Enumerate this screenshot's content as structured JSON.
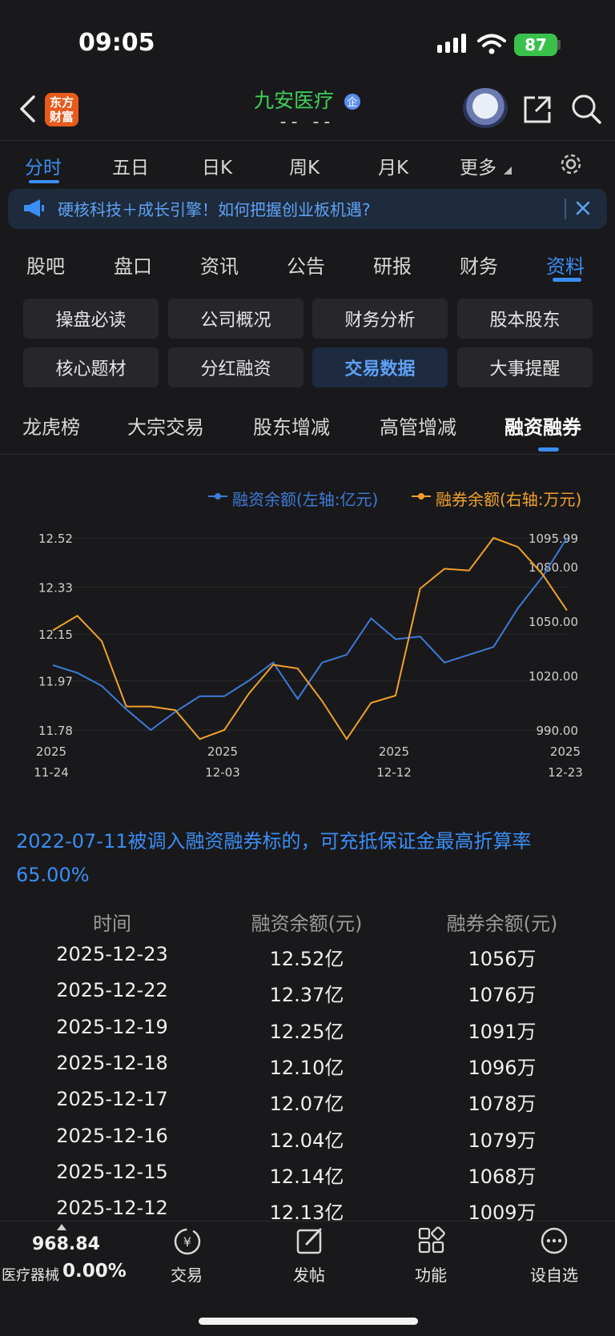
{
  "status_bar": {
    "time": "09:05",
    "battery": "87"
  },
  "header": {
    "logo_text": "东方财富",
    "stock_name": "九安医疗",
    "stock_sub": "-- --",
    "icons": [
      "back-icon",
      "share-icon",
      "search-icon"
    ]
  },
  "period_tabs": [
    "分时",
    "五日",
    "日K",
    "周K",
    "月K",
    "更多"
  ],
  "banner": {
    "text": "硬核科技＋成长引擎！如何把握创业板机遇?"
  },
  "section_tabs": [
    "股吧",
    "盘口",
    "资讯",
    "公告",
    "研报",
    "财务",
    "资料"
  ],
  "grid_buttons": [
    "操盘必读",
    "公司概况",
    "财务分析",
    "股本股东",
    "核心题材",
    "分红融资",
    "交易数据",
    "大事提醒"
  ],
  "sub_tabs": [
    "龙虎榜",
    "大宗交易",
    "股东增减",
    "高管增减",
    "融资融券"
  ],
  "chart_data": {
    "type": "line",
    "legend": [
      "融资余额(左轴:亿元)",
      "融券余额(右轴:万元)"
    ],
    "left_ticks": [
      "12.52",
      "12.33",
      "12.15",
      "11.97",
      "11.78"
    ],
    "right_ticks": [
      "1095.99",
      "1080.00",
      "1050.00",
      "1020.00",
      "990.00"
    ],
    "x_ticks": [
      [
        "2025",
        "11-24"
      ],
      [
        "2025",
        "12-03"
      ],
      [
        "2025",
        "12-12"
      ],
      [
        "2025",
        "12-23"
      ]
    ],
    "left_range": [
      11.78,
      12.52
    ],
    "right_range": [
      990.0,
      1095.99
    ],
    "colors": {
      "financing": "#3d7bd8",
      "securities": "#f0a12a"
    },
    "series": [
      {
        "name": "融资余额(左轴:亿元)",
        "axis": "left",
        "values": [
          12.03,
          12.0,
          11.95,
          11.86,
          11.78,
          11.85,
          11.91,
          11.91,
          11.97,
          12.04,
          11.9,
          12.04,
          12.07,
          12.21,
          12.13,
          12.14,
          12.04,
          12.07,
          12.1,
          12.25,
          12.37,
          12.52
        ]
      },
      {
        "name": "融券余额(右轴:万元)",
        "axis": "right",
        "values": [
          1045,
          1053,
          1039,
          1003,
          1003,
          1001,
          985,
          990,
          1010,
          1026,
          1024,
          1006,
          985,
          1005,
          1009,
          1068,
          1079,
          1078,
          1096,
          1091,
          1076,
          1056
        ]
      }
    ]
  },
  "note": "2022-07-11被调入融资融券标的，可充抵保证金最高折算率65.00%",
  "table": {
    "headers": [
      "时间",
      "融资余额(元)",
      "融券余额(元)"
    ],
    "rows": [
      [
        "2025-12-23",
        "12.52亿",
        "1056万"
      ],
      [
        "2025-12-22",
        "12.37亿",
        "1076万"
      ],
      [
        "2025-12-19",
        "12.25亿",
        "1091万"
      ],
      [
        "2025-12-18",
        "12.10亿",
        "1096万"
      ],
      [
        "2025-12-17",
        "12.07亿",
        "1078万"
      ],
      [
        "2025-12-16",
        "12.04亿",
        "1079万"
      ],
      [
        "2025-12-15",
        "12.14亿",
        "1068万"
      ],
      [
        "2025-12-12",
        "12.13亿",
        "1009万"
      ]
    ]
  },
  "bottom_bar": {
    "index_value": "968.84",
    "index_name": "医疗器械",
    "index_change": "0.00%",
    "buttons": [
      "交易",
      "发帖",
      "功能",
      "设自选"
    ]
  }
}
